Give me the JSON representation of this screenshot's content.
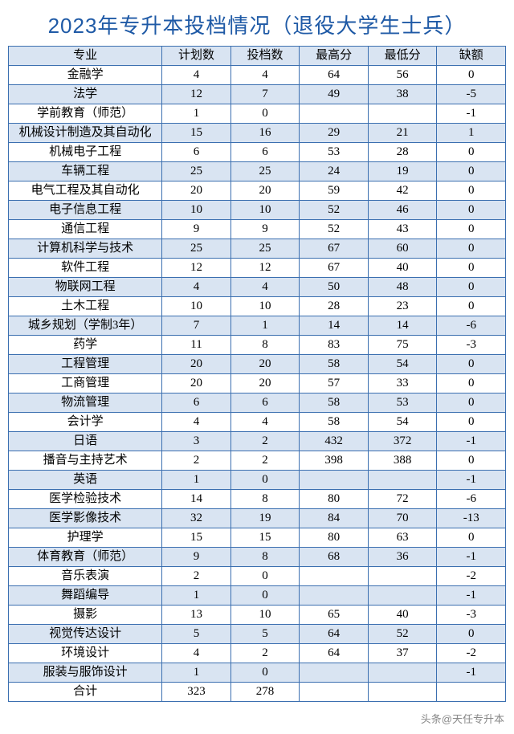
{
  "title": "2023年专升本投档情况（退役大学生士兵）",
  "columns": [
    "专业",
    "计划数",
    "投档数",
    "最高分",
    "最低分",
    "缺额"
  ],
  "colors": {
    "border": "#3b6fb0",
    "header_bg": "#d9e4f2",
    "stripe_bg": "#d9e4f2",
    "title_color": "#1f5aa6",
    "background": "#ffffff"
  },
  "rows": [
    {
      "major": "金融学",
      "plan": "4",
      "cast": "4",
      "high": "64",
      "low": "56",
      "gap": "0"
    },
    {
      "major": "法学",
      "plan": "12",
      "cast": "7",
      "high": "49",
      "low": "38",
      "gap": "-5"
    },
    {
      "major": "学前教育（师范）",
      "plan": "1",
      "cast": "0",
      "high": "",
      "low": "",
      "gap": "-1"
    },
    {
      "major": "机械设计制造及其自动化",
      "plan": "15",
      "cast": "16",
      "high": "29",
      "low": "21",
      "gap": "1"
    },
    {
      "major": "机械电子工程",
      "plan": "6",
      "cast": "6",
      "high": "53",
      "low": "28",
      "gap": "0"
    },
    {
      "major": "车辆工程",
      "plan": "25",
      "cast": "25",
      "high": "24",
      "low": "19",
      "gap": "0"
    },
    {
      "major": "电气工程及其自动化",
      "plan": "20",
      "cast": "20",
      "high": "59",
      "low": "42",
      "gap": "0"
    },
    {
      "major": "电子信息工程",
      "plan": "10",
      "cast": "10",
      "high": "52",
      "low": "46",
      "gap": "0"
    },
    {
      "major": "通信工程",
      "plan": "9",
      "cast": "9",
      "high": "52",
      "low": "43",
      "gap": "0"
    },
    {
      "major": "计算机科学与技术",
      "plan": "25",
      "cast": "25",
      "high": "67",
      "low": "60",
      "gap": "0"
    },
    {
      "major": "软件工程",
      "plan": "12",
      "cast": "12",
      "high": "67",
      "low": "40",
      "gap": "0"
    },
    {
      "major": "物联网工程",
      "plan": "4",
      "cast": "4",
      "high": "50",
      "low": "48",
      "gap": "0"
    },
    {
      "major": "土木工程",
      "plan": "10",
      "cast": "10",
      "high": "28",
      "low": "23",
      "gap": "0"
    },
    {
      "major": "城乡规划（学制3年）",
      "plan": "7",
      "cast": "1",
      "high": "14",
      "low": "14",
      "gap": "-6"
    },
    {
      "major": "药学",
      "plan": "11",
      "cast": "8",
      "high": "83",
      "low": "75",
      "gap": "-3"
    },
    {
      "major": "工程管理",
      "plan": "20",
      "cast": "20",
      "high": "58",
      "low": "54",
      "gap": "0"
    },
    {
      "major": "工商管理",
      "plan": "20",
      "cast": "20",
      "high": "57",
      "low": "33",
      "gap": "0"
    },
    {
      "major": "物流管理",
      "plan": "6",
      "cast": "6",
      "high": "58",
      "low": "53",
      "gap": "0"
    },
    {
      "major": "会计学",
      "plan": "4",
      "cast": "4",
      "high": "58",
      "low": "54",
      "gap": "0"
    },
    {
      "major": "日语",
      "plan": "3",
      "cast": "2",
      "high": "432",
      "low": "372",
      "gap": "-1"
    },
    {
      "major": "播音与主持艺术",
      "plan": "2",
      "cast": "2",
      "high": "398",
      "low": "388",
      "gap": "0"
    },
    {
      "major": "英语",
      "plan": "1",
      "cast": "0",
      "high": "",
      "low": "",
      "gap": "-1"
    },
    {
      "major": "医学检验技术",
      "plan": "14",
      "cast": "8",
      "high": "80",
      "low": "72",
      "gap": "-6"
    },
    {
      "major": "医学影像技术",
      "plan": "32",
      "cast": "19",
      "high": "84",
      "low": "70",
      "gap": "-13"
    },
    {
      "major": "护理学",
      "plan": "15",
      "cast": "15",
      "high": "80",
      "low": "63",
      "gap": "0"
    },
    {
      "major": "体育教育（师范）",
      "plan": "9",
      "cast": "8",
      "high": "68",
      "low": "36",
      "gap": "-1"
    },
    {
      "major": "音乐表演",
      "plan": "2",
      "cast": "0",
      "high": "",
      "low": "",
      "gap": "-2"
    },
    {
      "major": "舞蹈编导",
      "plan": "1",
      "cast": "0",
      "high": "",
      "low": "",
      "gap": "-1"
    },
    {
      "major": "摄影",
      "plan": "13",
      "cast": "10",
      "high": "65",
      "low": "40",
      "gap": "-3"
    },
    {
      "major": "视觉传达设计",
      "plan": "5",
      "cast": "5",
      "high": "64",
      "low": "52",
      "gap": "0"
    },
    {
      "major": "环境设计",
      "plan": "4",
      "cast": "2",
      "high": "64",
      "low": "37",
      "gap": "-2"
    },
    {
      "major": "服装与服饰设计",
      "plan": "1",
      "cast": "0",
      "high": "",
      "low": "",
      "gap": "-1"
    },
    {
      "major": "合计",
      "plan": "323",
      "cast": "278",
      "high": "",
      "low": "",
      "gap": ""
    }
  ],
  "watermark": "头条@天任专升本"
}
